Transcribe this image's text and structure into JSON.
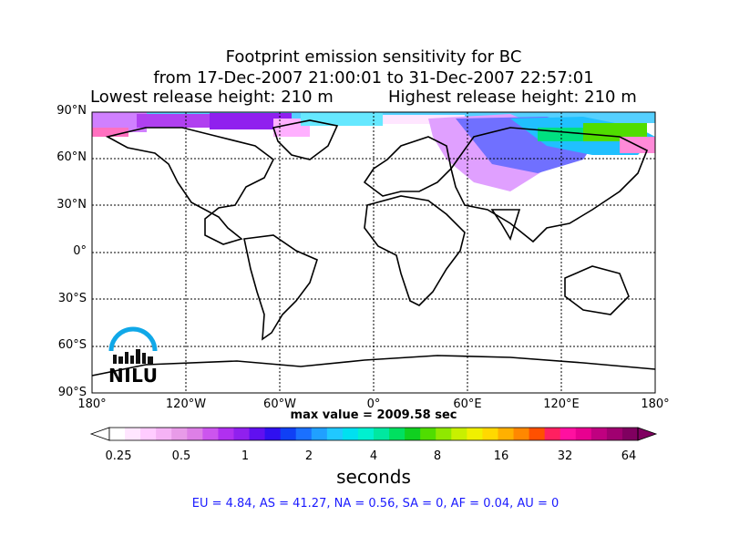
{
  "title": {
    "line1": "Footprint emission sensitivity for BC",
    "line2": "from 17-Dec-2007 21:00:01 to 31-Dec-2007 22:57:01",
    "lowest": "Lowest release height: 210 m",
    "highest": "Highest release height: 210 m"
  },
  "map": {
    "lat_labels": [
      "90°N",
      "60°N",
      "30°N",
      "0°",
      "30°S",
      "60°S",
      "90°S"
    ],
    "lon_labels": [
      "180°",
      "120°W",
      "60°W",
      "0°",
      "60°E",
      "120°E",
      "180°"
    ],
    "max_value": "max value = 2009.58 sec",
    "logo_text": "NILU"
  },
  "colorbar": {
    "tick_labels": [
      "0.25",
      "0.5",
      "1",
      "2",
      "4",
      "8",
      "16",
      "32",
      "64"
    ],
    "units": "seconds",
    "colors": [
      "#ffffff",
      "#ffe6ff",
      "#ffccff",
      "#f5b3f5",
      "#e89be8",
      "#dd7fe6",
      "#cc55ee",
      "#b030f0",
      "#9020ee",
      "#6010f0",
      "#3010f0",
      "#1040f5",
      "#1a70ff",
      "#20a0ff",
      "#20c8ff",
      "#00e0f0",
      "#00f0d0",
      "#00e8a0",
      "#00e060",
      "#10d020",
      "#50dd00",
      "#90e800",
      "#c8f000",
      "#f0f000",
      "#ffd800",
      "#ffb000",
      "#ff8800",
      "#ff5000",
      "#ff2060",
      "#ff10a0",
      "#e80090",
      "#c00080",
      "#a00070",
      "#800060"
    ]
  },
  "regions": "EU = 4.84,  AS = 41.27,  NA = 0.56,  SA = 0,  AF = 0.04,  AU = 0"
}
